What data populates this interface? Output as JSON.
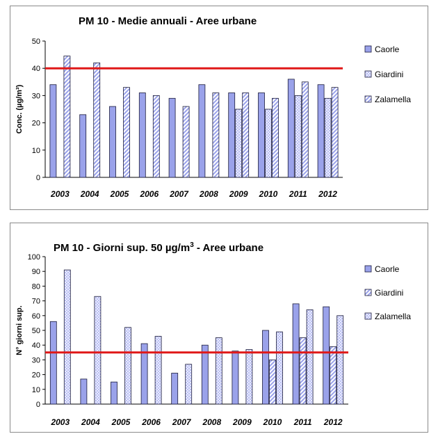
{
  "colors": {
    "bar_fill": "#9aa2ea",
    "bar_stroke": "#1a1a3a",
    "threshold": "#e01818",
    "axis": "#000000"
  },
  "chart_data": [
    {
      "type": "bar",
      "title": "PM 10 - Medie annuali - Aree urbane",
      "ylabel": "Conc. (µg/m³)",
      "categories": [
        "2003",
        "2004",
        "2005",
        "2006",
        "2007",
        "2008",
        "2009",
        "2010",
        "2011",
        "2012"
      ],
      "ylim": [
        0,
        50
      ],
      "yticks": [
        0,
        10,
        20,
        30,
        40,
        50
      ],
      "threshold": 40,
      "legend_position": "right",
      "series": [
        {
          "name": "Caorle",
          "pattern": "solid",
          "values": [
            34,
            23,
            26,
            31,
            29,
            34,
            31,
            31,
            36,
            34
          ]
        },
        {
          "name": "Giardini",
          "pattern": "dots",
          "values": [
            null,
            null,
            null,
            null,
            null,
            null,
            25,
            25,
            30,
            29
          ]
        },
        {
          "name": "Zalamella",
          "pattern": "hatch",
          "values": [
            44.5,
            42,
            33,
            30,
            26,
            31,
            31,
            29,
            35,
            33
          ]
        }
      ],
      "legend": [
        "Caorle",
        "Giardini",
        "Zalamella"
      ]
    },
    {
      "type": "bar",
      "title": "PM 10 - Giorni sup. 50 µg/m",
      "title_sup": "3",
      "title_suffix": " - Aree urbane",
      "ylabel": "N° giorni sup.",
      "categories": [
        "2003",
        "2004",
        "2005",
        "2006",
        "2007",
        "2008",
        "2009",
        "2010",
        "2011",
        "2012"
      ],
      "ylim": [
        0,
        100
      ],
      "yticks": [
        0,
        10,
        20,
        30,
        40,
        50,
        60,
        70,
        80,
        90,
        100
      ],
      "threshold": 35,
      "legend_position": "right",
      "series": [
        {
          "name": "Caorle",
          "pattern": "solid",
          "values": [
            56,
            17,
            15,
            41,
            21,
            40,
            36,
            50,
            68,
            66
          ]
        },
        {
          "name": "Giardini",
          "pattern": "hatch",
          "values": [
            null,
            null,
            null,
            null,
            null,
            null,
            null,
            30,
            45,
            39
          ]
        },
        {
          "name": "Zalamella",
          "pattern": "dots",
          "values": [
            91,
            73,
            52,
            46,
            27,
            45,
            37,
            49,
            64,
            60
          ]
        }
      ],
      "legend": [
        "Caorle",
        "Giardini",
        "Zalamella"
      ]
    }
  ]
}
